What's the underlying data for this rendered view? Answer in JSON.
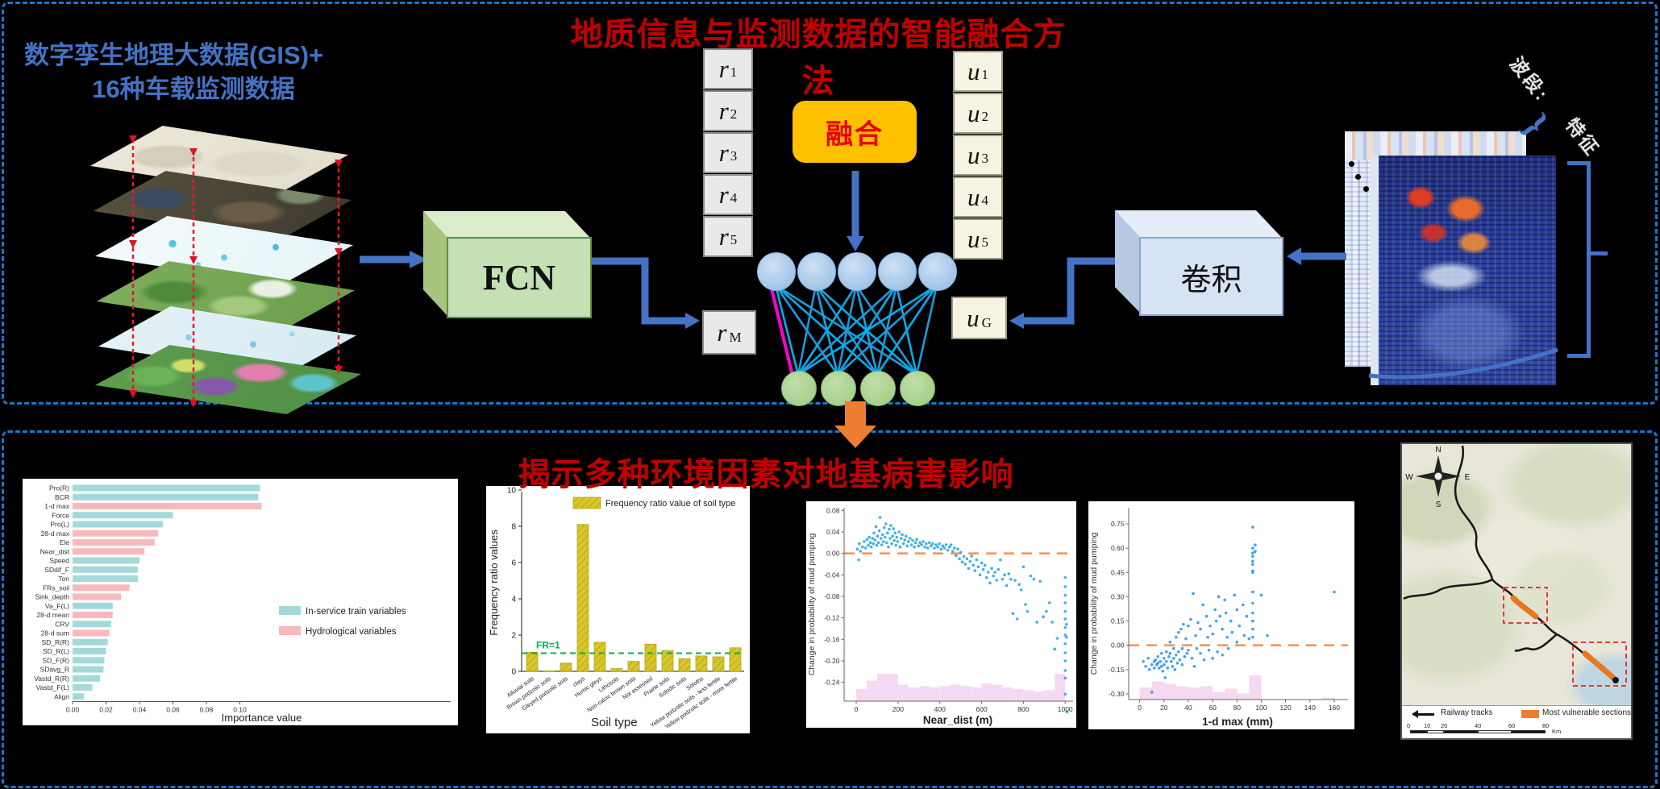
{
  "top_section": {
    "title": "地质信息与监测数据的智能融合方法",
    "left_label_line1": "数字孪生地理大数据(GIS)+",
    "left_label_line2": "16种车载监测数据",
    "fcn_label": "FCN",
    "fusion_label": "融合",
    "conv_label": "卷积",
    "r_base": "r",
    "r_vector_subs": [
      "1",
      "2",
      "3",
      "4",
      "5"
    ],
    "rm_sub": "M",
    "u_base": "u",
    "u_vector_subs": [
      "1",
      "2",
      "3",
      "4",
      "5"
    ],
    "ug_sub": "G",
    "spectrogram_label_1": "波段:",
    "spectrogram_label_2": "特征",
    "accent_colors": {
      "arrow_blue": "#4472C4",
      "net_cyan": "#00B0F0",
      "net_magenta": "#FF00D4",
      "fusion_fill": "#FFC000",
      "red_dash": "#E8192C",
      "border_dash": "#1878CE"
    }
  },
  "bottom_section": {
    "title": "揭示多种环境因素对地基病害影响",
    "map": {
      "compass": {
        "n": "N",
        "w": "W",
        "e": "E",
        "s": "S"
      },
      "legend": [
        {
          "label": "Railway tracks",
          "color": "#111111"
        },
        {
          "label": "Most vulnerable sections",
          "color": "#ED7D31"
        }
      ],
      "scale_ticks": [
        "0",
        "10",
        "20",
        "40",
        "60",
        "80"
      ],
      "scale_unit": "Km"
    }
  },
  "chart_data": [
    {
      "type": "bar",
      "orientation": "horizontal",
      "xlabel": "Importance value",
      "xlim": [
        0,
        0.115
      ],
      "xticks": [
        0,
        0.02,
        0.04,
        0.06,
        0.08,
        0.1
      ],
      "categories": [
        "Pro(R)",
        "BCR",
        "1-d max",
        "Force",
        "Pro(L)",
        "28-d max",
        "Ele",
        "Near_dist",
        "Speed",
        "SDdif_F",
        "Ton",
        "FRs_soil",
        "Sink_depth",
        "Va_F(L)",
        "28-d mean",
        "CRV",
        "28-d sum",
        "SD_R(R)",
        "SD_R(L)",
        "SD_F(R)",
        "SDavg_R",
        "Vastd_R(R)",
        "Vastd_F(L)",
        "Align"
      ],
      "values": [
        0.112,
        0.111,
        0.113,
        0.06,
        0.054,
        0.051,
        0.049,
        0.043,
        0.04,
        0.039,
        0.039,
        0.034,
        0.029,
        0.024,
        0.024,
        0.023,
        0.022,
        0.021,
        0.02,
        0.019,
        0.0185,
        0.0164,
        0.0118,
        0.0067
      ],
      "groups": [
        "train",
        "train",
        "hydro",
        "train",
        "train",
        "hydro",
        "hydro",
        "hydro",
        "train",
        "train",
        "train",
        "hydro",
        "hydro",
        "train",
        "hydro",
        "train",
        "hydro",
        "train",
        "train",
        "train",
        "train",
        "train",
        "train",
        "train"
      ],
      "legend": [
        {
          "key": "train",
          "label": "In-service train variables",
          "color": "#A3D9DB"
        },
        {
          "key": "hydro",
          "label": "Hydrological variables",
          "color": "#F9B8BC"
        }
      ]
    },
    {
      "type": "bar",
      "orientation": "vertical",
      "ylabel": "Frequency ratio values",
      "xlabel": "Soil type",
      "ylim": [
        0,
        10
      ],
      "yticks": [
        0,
        2,
        4,
        6,
        8,
        10
      ],
      "legend": [
        {
          "label": "Frequency ratio value of soil type",
          "color": "#D8C62C"
        }
      ],
      "ref_line": {
        "label": "FR=1",
        "value": 1,
        "color": "#00B050"
      },
      "categories": [
        "Alluvial soils",
        "Brown podzolic soils",
        "Gleyed podzolic soils",
        "clays",
        "Humic gleys",
        "Lithosols",
        "Non-calcic brown soils",
        "Not assessed",
        "Prairie soils",
        "Solodic soils",
        "Soloths",
        "Yellow podzolic soils - less fertile",
        "Yellow podzolic soils - more fertile"
      ],
      "values": [
        1.05,
        0.03,
        0.45,
        8.1,
        1.6,
        0.15,
        0.55,
        1.5,
        1.15,
        0.7,
        0.85,
        0.8,
        1.3
      ]
    },
    {
      "type": "scatter",
      "ylabel": "Change in probability of mud pumping",
      "xlabel": "Near_dist (m)",
      "ylim": [
        -0.275,
        0.085
      ],
      "yticks": [
        0.08,
        0.04,
        0.0,
        -0.04,
        -0.08,
        -0.12,
        -0.16,
        -0.2,
        -0.24
      ],
      "xlim": [
        -58,
        1030
      ],
      "xticks": [
        0,
        200,
        400,
        600,
        800,
        1000
      ],
      "ref_line": {
        "value": 0,
        "color": "#F0965A"
      },
      "point_color": "#2FA8E1",
      "hist_color": "#F5D9F1",
      "hist_bins": {
        "start": 0,
        "width": 50,
        "heights": [
          0.45,
          0.75,
          1.0,
          1.0,
          0.6,
          0.5,
          0.55,
          0.5,
          0.55,
          0.6,
          0.55,
          0.5,
          0.65,
          0.6,
          0.5,
          0.45,
          0.4,
          0.35,
          0.4,
          1.0
        ]
      },
      "points": [
        [
          5,
          0.008
        ],
        [
          12,
          -0.012
        ],
        [
          15,
          0.018
        ],
        [
          20,
          0.004
        ],
        [
          30,
          0.012
        ],
        [
          38,
          0.022
        ],
        [
          45,
          0.01
        ],
        [
          52,
          0.026
        ],
        [
          58,
          0.015
        ],
        [
          63,
          0.03
        ],
        [
          68,
          0.02
        ],
        [
          72,
          0.012
        ],
        [
          78,
          0.028
        ],
        [
          82,
          0.018
        ],
        [
          85,
          0.038
        ],
        [
          90,
          0.025
        ],
        [
          95,
          0.05
        ],
        [
          98,
          0.015
        ],
        [
          102,
          0.032
        ],
        [
          106,
          0.02
        ],
        [
          110,
          0.042
        ],
        [
          114,
          0.067
        ],
        [
          118,
          0.028
        ],
        [
          122,
          0.016
        ],
        [
          126,
          0.035
        ],
        [
          130,
          0.022
        ],
        [
          134,
          0.048
        ],
        [
          138,
          0.03
        ],
        [
          142,
          0.055
        ],
        [
          146,
          0.02
        ],
        [
          150,
          0.038
        ],
        [
          154,
          0.012
        ],
        [
          158,
          0.045
        ],
        [
          162,
          0.028
        ],
        [
          166,
          0.052
        ],
        [
          170,
          0.018
        ],
        [
          174,
          0.032
        ],
        [
          178,
          0.046
        ],
        [
          182,
          0.024
        ],
        [
          186,
          0.038
        ],
        [
          190,
          0.015
        ],
        [
          194,
          0.03
        ],
        [
          198,
          0.022
        ],
        [
          205,
          0.04
        ],
        [
          210,
          0.012
        ],
        [
          215,
          0.028
        ],
        [
          220,
          0.035
        ],
        [
          226,
          0.018
        ],
        [
          232,
          0.025
        ],
        [
          238,
          0.032
        ],
        [
          244,
          0.014
        ],
        [
          250,
          0.022
        ],
        [
          258,
          0.028
        ],
        [
          264,
          0.016
        ],
        [
          270,
          0.024
        ],
        [
          278,
          0.012
        ],
        [
          284,
          0.02
        ],
        [
          290,
          0.026
        ],
        [
          298,
          0.014
        ],
        [
          305,
          0.02
        ],
        [
          312,
          0.016
        ],
        [
          320,
          0.022
        ],
        [
          328,
          0.012
        ],
        [
          335,
          0.018
        ],
        [
          342,
          0.01
        ],
        [
          350,
          0.02
        ],
        [
          358,
          0.014
        ],
        [
          366,
          0.018
        ],
        [
          374,
          0.01
        ],
        [
          382,
          0.016
        ],
        [
          390,
          0.012
        ],
        [
          398,
          0.018
        ],
        [
          406,
          0.008
        ],
        [
          414,
          0.014
        ],
        [
          422,
          0.01
        ],
        [
          430,
          0.016
        ],
        [
          438,
          0.006
        ],
        [
          446,
          0.012
        ],
        [
          454,
          0.016
        ],
        [
          462,
          0.004
        ],
        [
          470,
          0.01
        ],
        [
          478,
          -0.004
        ],
        [
          486,
          0.008
        ],
        [
          494,
          -0.01
        ],
        [
          500,
          0.002
        ],
        [
          508,
          -0.016
        ],
        [
          515,
          -0.006
        ],
        [
          522,
          -0.02
        ],
        [
          530,
          -0.01
        ],
        [
          538,
          -0.028
        ],
        [
          545,
          -0.015
        ],
        [
          552,
          -0.005
        ],
        [
          560,
          -0.022
        ],
        [
          568,
          -0.032
        ],
        [
          576,
          -0.012
        ],
        [
          584,
          -0.025
        ],
        [
          592,
          -0.04
        ],
        [
          600,
          -0.018
        ],
        [
          608,
          -0.03
        ],
        [
          616,
          -0.022
        ],
        [
          624,
          -0.045
        ],
        [
          632,
          -0.035
        ],
        [
          640,
          -0.055
        ],
        [
          648,
          -0.028
        ],
        [
          656,
          -0.042
        ],
        [
          664,
          -0.035
        ],
        [
          672,
          -0.05
        ],
        [
          680,
          -0.03
        ],
        [
          690,
          -0.012
        ],
        [
          700,
          -0.048
        ],
        [
          710,
          -0.04
        ],
        [
          720,
          -0.06
        ],
        [
          730,
          -0.038
        ],
        [
          740,
          -0.048
        ],
        [
          750,
          -0.112
        ],
        [
          760,
          -0.05
        ],
        [
          770,
          -0.122
        ],
        [
          780,
          -0.058
        ],
        [
          790,
          -0.068
        ],
        [
          800,
          -0.025
        ],
        [
          810,
          -0.095
        ],
        [
          820,
          -0.108
        ],
        [
          835,
          -0.042
        ],
        [
          850,
          -0.048
        ],
        [
          865,
          -0.128
        ],
        [
          880,
          -0.052
        ],
        [
          895,
          -0.118
        ],
        [
          910,
          -0.108
        ],
        [
          925,
          -0.092
        ],
        [
          938,
          -0.128
        ],
        [
          950,
          -0.178
        ],
        [
          962,
          -0.158
        ],
        [
          1000,
          -0.045
        ],
        [
          1000,
          -0.062
        ],
        [
          1000,
          -0.078
        ],
        [
          1000,
          -0.092
        ],
        [
          1000,
          -0.108
        ],
        [
          1000,
          -0.122
        ],
        [
          1000,
          -0.138
        ],
        [
          1000,
          -0.152
        ],
        [
          1000,
          -0.168
        ],
        [
          1000,
          -0.185
        ],
        [
          1000,
          -0.2
        ],
        [
          1000,
          -0.218
        ],
        [
          1000,
          -0.232
        ],
        [
          1000,
          -0.262
        ],
        [
          1006,
          -0.132
        ],
        [
          1006,
          -0.156
        ],
        [
          1008,
          -0.295
        ]
      ]
    },
    {
      "type": "scatter",
      "ylabel": "Change in probability of mud pumping",
      "xlabel": "1-d max (mm)",
      "ylim": [
        -0.335,
        0.85
      ],
      "yticks": [
        0.75,
        0.6,
        0.45,
        0.3,
        0.15,
        0.0,
        -0.15,
        -0.3
      ],
      "xlim": [
        -9,
        170
      ],
      "xticks": [
        0,
        20,
        40,
        60,
        80,
        100,
        120,
        140,
        160
      ],
      "ref_line": {
        "value": 0,
        "color": "#F0965A"
      },
      "point_color": "#2F9BE0",
      "hist_color": "#F5D9F1",
      "hist_bins": {
        "start": 0,
        "width": 10,
        "heights": [
          0.5,
          0.75,
          0.65,
          0.55,
          0.5,
          0.55,
          0.3,
          0.45,
          0.25,
          1.0,
          0,
          0,
          0,
          0,
          0,
          0.08
        ]
      },
      "points": [
        [
          3,
          -0.1
        ],
        [
          5,
          -0.13
        ],
        [
          7,
          -0.08
        ],
        [
          8,
          -0.15
        ],
        [
          10,
          -0.12
        ],
        [
          10,
          -0.29
        ],
        [
          12,
          -0.1
        ],
        [
          12,
          -0.14
        ],
        [
          13,
          -0.09
        ],
        [
          14,
          -0.12
        ],
        [
          15,
          -0.07
        ],
        [
          15,
          -0.11
        ],
        [
          16,
          -0.14
        ],
        [
          17,
          -0.1
        ],
        [
          18,
          -0.05
        ],
        [
          18,
          -0.13
        ],
        [
          19,
          -0.16
        ],
        [
          20,
          -0.08
        ],
        [
          20,
          -0.12
        ],
        [
          21,
          -0.2
        ],
        [
          22,
          -0.04
        ],
        [
          22,
          -0.1
        ],
        [
          23,
          -0.14
        ],
        [
          24,
          -0.07
        ],
        [
          25,
          0.02
        ],
        [
          25,
          -0.05
        ],
        [
          26,
          -0.1
        ],
        [
          27,
          -0.13
        ],
        [
          28,
          -0.02
        ],
        [
          28,
          -0.08
        ],
        [
          29,
          -0.15
        ],
        [
          30,
          0.05
        ],
        [
          30,
          -0.06
        ],
        [
          31,
          -0.11
        ],
        [
          32,
          0.08
        ],
        [
          32,
          -0.04
        ],
        [
          33,
          -0.09
        ],
        [
          34,
          0.1
        ],
        [
          35,
          -0.02
        ],
        [
          35,
          -0.12
        ],
        [
          36,
          0.13
        ],
        [
          37,
          -0.07
        ],
        [
          38,
          0.04
        ],
        [
          39,
          -0.05
        ],
        [
          40,
          0.12
        ],
        [
          40,
          -0.03
        ],
        [
          42,
          0.16
        ],
        [
          43,
          -0.08
        ],
        [
          44,
          0.32
        ],
        [
          45,
          -0.13
        ],
        [
          46,
          0.06
        ],
        [
          47,
          -0.02
        ],
        [
          48,
          0.14
        ],
        [
          50,
          0.1
        ],
        [
          50,
          -0.05
        ],
        [
          52,
          0.25
        ],
        [
          53,
          -0.09
        ],
        [
          55,
          0.18
        ],
        [
          56,
          0.05
        ],
        [
          57,
          -0.03
        ],
        [
          58,
          0.12
        ],
        [
          60,
          0.07
        ],
        [
          60,
          -0.08
        ],
        [
          62,
          0.22
        ],
        [
          63,
          0.15
        ],
        [
          64,
          -0.04
        ],
        [
          65,
          0.3
        ],
        [
          66,
          0.18
        ],
        [
          68,
          0.1
        ],
        [
          68,
          -0.06
        ],
        [
          70,
          0.28
        ],
        [
          71,
          0.2
        ],
        [
          72,
          0.05
        ],
        [
          73,
          -0.02
        ],
        [
          75,
          0.15
        ],
        [
          76,
          0.08
        ],
        [
          78,
          0.31
        ],
        [
          80,
          0.22
        ],
        [
          80,
          0.02
        ],
        [
          82,
          0.12
        ],
        [
          85,
          0.25
        ],
        [
          86,
          0.06
        ],
        [
          88,
          0.18
        ],
        [
          90,
          0.04
        ],
        [
          93,
          0.73
        ],
        [
          93,
          0.6
        ],
        [
          93,
          0.57
        ],
        [
          93,
          0.55
        ],
        [
          93,
          0.52
        ],
        [
          93,
          0.5
        ],
        [
          93,
          0.46
        ],
        [
          93,
          0.45
        ],
        [
          93,
          0.33
        ],
        [
          93,
          0.26
        ],
        [
          93,
          0.2
        ],
        [
          93,
          0.15
        ],
        [
          93,
          0.1
        ],
        [
          93,
          0.05
        ],
        [
          95,
          0.62
        ],
        [
          95,
          0.58
        ],
        [
          100,
          0.31
        ],
        [
          105,
          0.06
        ],
        [
          160,
          0.33
        ]
      ]
    }
  ]
}
